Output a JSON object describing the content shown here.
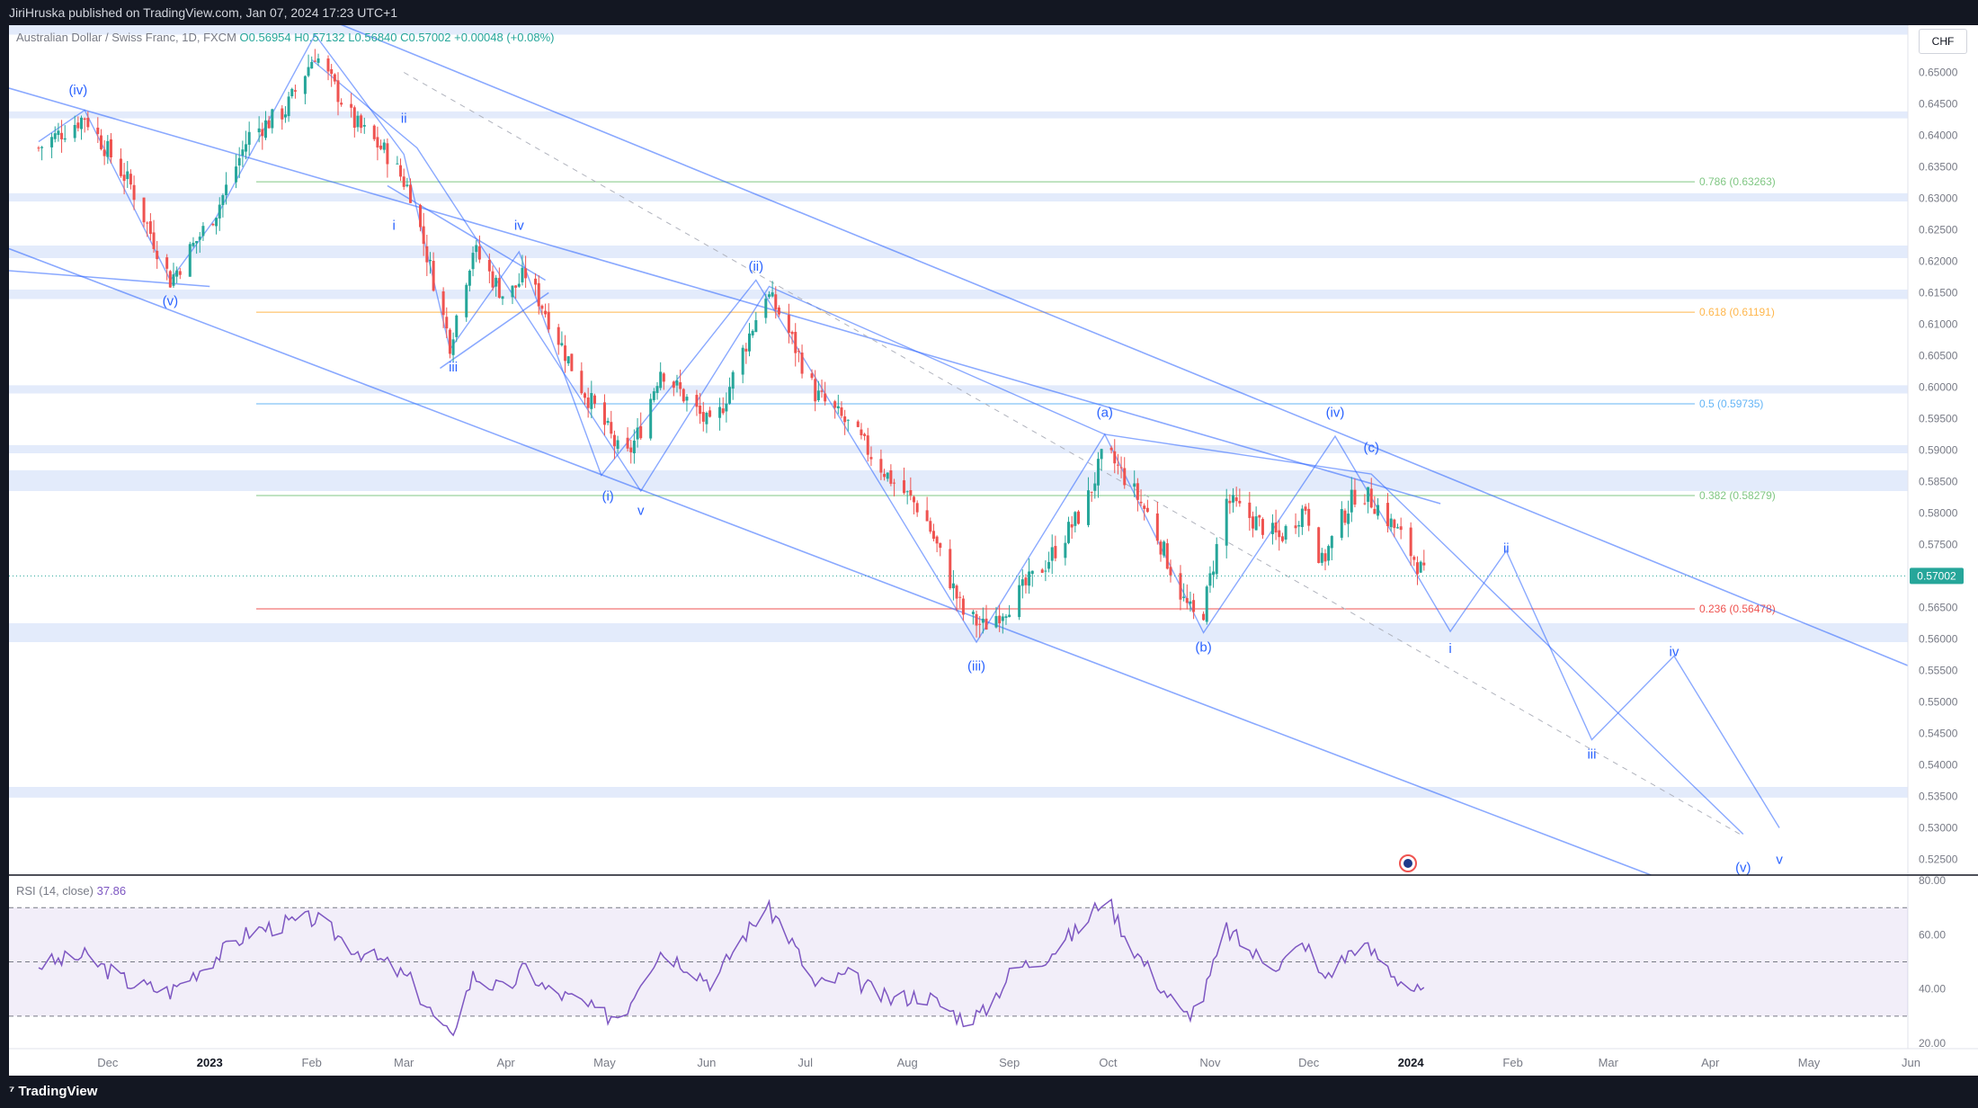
{
  "header": {
    "publisher": "JiriHruska published on TradingView.com, Jan 07, 2024 17:23 UTC+1"
  },
  "legend": {
    "symbol": "Australian Dollar / Swiss Franc, 1D, FXCM",
    "open": "O0.56954",
    "high": "H0.57132",
    "low": "L0.56840",
    "close": "C0.57002",
    "change": "+0.00048 (+0.08%)"
  },
  "currency": "CHF",
  "last_price": "0.57002",
  "rsi_legend": {
    "label": "RSI (14, close)",
    "value": "37.86"
  },
  "footer": {
    "brand": "TradingView"
  },
  "colors": {
    "bull": "#26a69a",
    "bear": "#ef5350",
    "wave": "#2962ff",
    "band": "#e3ebfb",
    "rsi": "#7e57c2"
  },
  "chart_data": {
    "type": "candlestick",
    "price_axis": {
      "ylim": [
        0.5225,
        0.6575
      ],
      "ticks": [
        "0.65000",
        "0.64500",
        "0.64000",
        "0.63500",
        "0.63000",
        "0.62500",
        "0.62000",
        "0.61500",
        "0.61000",
        "0.60500",
        "0.60000",
        "0.59500",
        "0.59000",
        "0.58500",
        "0.58000",
        "0.57500",
        "0.57000",
        "0.56500",
        "0.56000",
        "0.55500",
        "0.55000",
        "0.54500",
        "0.54000",
        "0.53500",
        "0.53000",
        "0.52500"
      ]
    },
    "rsi_axis": {
      "ylim": [
        18,
        82
      ],
      "ticks": [
        "80.00",
        "60.00",
        "40.00",
        "20.00"
      ],
      "levels": [
        30,
        50,
        70
      ]
    },
    "x_ticks": [
      {
        "label": "Dec",
        "date": "2022-12-01"
      },
      {
        "label": "2023",
        "date": "2023-01-01"
      },
      {
        "label": "Feb",
        "date": "2023-02-01"
      },
      {
        "label": "Mar",
        "date": "2023-03-01"
      },
      {
        "label": "Apr",
        "date": "2023-04-01"
      },
      {
        "label": "May",
        "date": "2023-05-01"
      },
      {
        "label": "Jun",
        "date": "2023-06-01"
      },
      {
        "label": "Jul",
        "date": "2023-07-01"
      },
      {
        "label": "Aug",
        "date": "2023-08-01"
      },
      {
        "label": "Sep",
        "date": "2023-09-01"
      },
      {
        "label": "Oct",
        "date": "2023-10-01"
      },
      {
        "label": "Nov",
        "date": "2023-11-01"
      },
      {
        "label": "Dec",
        "date": "2023-12-01"
      },
      {
        "label": "2024",
        "date": "2024-01-01"
      },
      {
        "label": "Feb",
        "date": "2024-02-01"
      },
      {
        "label": "Mar",
        "date": "2024-03-01"
      },
      {
        "label": "Apr",
        "date": "2024-04-01"
      },
      {
        "label": "May",
        "date": "2024-05-01"
      },
      {
        "label": "Jun",
        "date": "2024-06-01"
      }
    ],
    "price_path": [
      [
        "2022-11-10",
        0.638
      ],
      [
        "2022-11-24",
        0.643
      ],
      [
        "2022-12-08",
        0.632
      ],
      [
        "2022-12-20",
        0.617
      ],
      [
        "2023-01-03",
        0.628
      ],
      [
        "2023-01-13",
        0.64
      ],
      [
        "2023-01-24",
        0.644
      ],
      [
        "2023-02-02",
        0.653
      ],
      [
        "2023-02-14",
        0.642
      ],
      [
        "2023-02-24",
        0.637
      ],
      [
        "2023-03-03",
        0.631
      ],
      [
        "2023-03-10",
        0.617
      ],
      [
        "2023-03-15",
        0.607
      ],
      [
        "2023-03-22",
        0.622
      ],
      [
        "2023-04-01",
        0.614
      ],
      [
        "2023-04-07",
        0.618
      ],
      [
        "2023-04-13",
        0.612
      ],
      [
        "2023-04-24",
        0.6
      ],
      [
        "2023-04-30",
        0.595
      ],
      [
        "2023-05-07",
        0.588
      ],
      [
        "2023-05-12",
        0.5935
      ],
      [
        "2023-05-18",
        0.603
      ],
      [
        "2023-05-26",
        0.598
      ],
      [
        "2023-06-03",
        0.593
      ],
      [
        "2023-06-10",
        0.603
      ],
      [
        "2023-06-19",
        0.615
      ],
      [
        "2023-06-24",
        0.611
      ],
      [
        "2023-07-04",
        0.599
      ],
      [
        "2023-07-14",
        0.594
      ],
      [
        "2023-07-26",
        0.586
      ],
      [
        "2023-08-06",
        0.58
      ],
      [
        "2023-08-18",
        0.564
      ],
      [
        "2023-08-24",
        0.562
      ],
      [
        "2023-09-02",
        0.566
      ],
      [
        "2023-09-12",
        0.572
      ],
      [
        "2023-09-24",
        0.581
      ],
      [
        "2023-09-30",
        0.59
      ],
      [
        "2023-10-07",
        0.585
      ],
      [
        "2023-10-14",
        0.579
      ],
      [
        "2023-10-24",
        0.566
      ],
      [
        "2023-10-29",
        0.562
      ],
      [
        "2023-11-06",
        0.582
      ],
      [
        "2023-11-14",
        0.579
      ],
      [
        "2023-11-22",
        0.576
      ],
      [
        "2023-11-30",
        0.581
      ],
      [
        "2023-12-05",
        0.572
      ],
      [
        "2023-12-10",
        0.578
      ],
      [
        "2023-12-16",
        0.584
      ],
      [
        "2023-12-22",
        0.581
      ],
      [
        "2023-12-28",
        0.577
      ],
      [
        "2024-01-03",
        0.572
      ],
      [
        "2024-01-05",
        0.57
      ]
    ],
    "rsi_path": [
      [
        "2022-11-10",
        49
      ],
      [
        "2022-11-24",
        52
      ],
      [
        "2022-12-08",
        42
      ],
      [
        "2022-12-20",
        39
      ],
      [
        "2023-01-03",
        52
      ],
      [
        "2023-01-13",
        61
      ],
      [
        "2023-01-24",
        64
      ],
      [
        "2023-02-02",
        66
      ],
      [
        "2023-02-14",
        55
      ],
      [
        "2023-02-24",
        49
      ],
      [
        "2023-03-03",
        43
      ],
      [
        "2023-03-10",
        30
      ],
      [
        "2023-03-15",
        22
      ],
      [
        "2023-03-22",
        45
      ],
      [
        "2023-04-01",
        39
      ],
      [
        "2023-04-07",
        48
      ],
      [
        "2023-04-13",
        40
      ],
      [
        "2023-04-24",
        35
      ],
      [
        "2023-04-30",
        30
      ],
      [
        "2023-05-07",
        31
      ],
      [
        "2023-05-12",
        44
      ],
      [
        "2023-05-18",
        54
      ],
      [
        "2023-05-26",
        49
      ],
      [
        "2023-06-03",
        42
      ],
      [
        "2023-06-10",
        56
      ],
      [
        "2023-06-19",
        70
      ],
      [
        "2023-06-24",
        64
      ],
      [
        "2023-07-04",
        41
      ],
      [
        "2023-07-14",
        45
      ],
      [
        "2023-07-26",
        36
      ],
      [
        "2023-08-06",
        38
      ],
      [
        "2023-08-18",
        29
      ],
      [
        "2023-08-24",
        31
      ],
      [
        "2023-09-02",
        47
      ],
      [
        "2023-09-12",
        52
      ],
      [
        "2023-09-24",
        64
      ],
      [
        "2023-09-30",
        75
      ],
      [
        "2023-10-07",
        58
      ],
      [
        "2023-10-14",
        46
      ],
      [
        "2023-10-24",
        30
      ],
      [
        "2023-10-29",
        34
      ],
      [
        "2023-11-06",
        62
      ],
      [
        "2023-11-14",
        53
      ],
      [
        "2023-11-22",
        49
      ],
      [
        "2023-11-30",
        57
      ],
      [
        "2023-12-05",
        44
      ],
      [
        "2023-12-10",
        49
      ],
      [
        "2023-12-16",
        57
      ],
      [
        "2023-12-22",
        52
      ],
      [
        "2023-12-28",
        44
      ],
      [
        "2024-01-03",
        39
      ],
      [
        "2024-01-05",
        38
      ]
    ],
    "fib_levels": [
      {
        "label": "0.786 (0.63263)",
        "value": 0.63263,
        "color": "#81c784"
      },
      {
        "label": "0.618 (0.61191)",
        "value": 0.61191,
        "color": "#ffb74d"
      },
      {
        "label": "0.5 (0.59735)",
        "value": 0.59735,
        "color": "#64b5f6"
      },
      {
        "label": "0.382 (0.58279)",
        "value": 0.58279,
        "color": "#81c784"
      },
      {
        "label": "0.236 (0.56478)",
        "value": 0.56478,
        "color": "#ef5350"
      }
    ],
    "zones": [
      [
        0.656,
        0.6585
      ],
      [
        0.6427,
        0.6438
      ],
      [
        0.6295,
        0.6308
      ],
      [
        0.6205,
        0.6225
      ],
      [
        0.614,
        0.6155
      ],
      [
        0.599,
        0.6003
      ],
      [
        0.5895,
        0.5908
      ],
      [
        0.5835,
        0.5868
      ],
      [
        0.5595,
        0.5625
      ],
      [
        0.5348,
        0.5365
      ]
    ],
    "wave_labels": [
      {
        "text": "(iv)",
        "date": "2022-11-22",
        "price": 0.6465
      },
      {
        "text": "(v)",
        "date": "2022-12-20",
        "price": 0.613
      },
      {
        "text": "ii",
        "date": "2023-03-01",
        "price": 0.642
      },
      {
        "text": "i",
        "date": "2023-02-26",
        "price": 0.625
      },
      {
        "text": "iv",
        "date": "2023-04-05",
        "price": 0.625
      },
      {
        "text": "iii",
        "date": "2023-03-16",
        "price": 0.6025
      },
      {
        "text": "(ii)",
        "date": "2023-06-16",
        "price": 0.6185
      },
      {
        "text": "(i)",
        "date": "2023-05-02",
        "price": 0.582
      },
      {
        "text": "v",
        "date": "2023-05-12",
        "price": 0.5797
      },
      {
        "text": "(iii)",
        "date": "2023-08-22",
        "price": 0.555
      },
      {
        "text": "(a)",
        "date": "2023-09-30",
        "price": 0.5953
      },
      {
        "text": "(b)",
        "date": "2023-10-30",
        "price": 0.558
      },
      {
        "text": "(iv)",
        "date": "2023-12-09",
        "price": 0.5953
      },
      {
        "text": "(c)",
        "date": "2023-12-20",
        "price": 0.5897
      },
      {
        "text": "i",
        "date": "2024-01-13",
        "price": 0.5578
      },
      {
        "text": "ii",
        "date": "2024-01-30",
        "price": 0.5737
      },
      {
        "text": "iii",
        "date": "2024-02-25",
        "price": 0.541
      },
      {
        "text": "iv",
        "date": "2024-03-21",
        "price": 0.5573
      },
      {
        "text": "(v)",
        "date": "2024-04-11",
        "price": 0.523
      },
      {
        "text": "v",
        "date": "2024-04-22",
        "price": 0.5243
      }
    ]
  }
}
